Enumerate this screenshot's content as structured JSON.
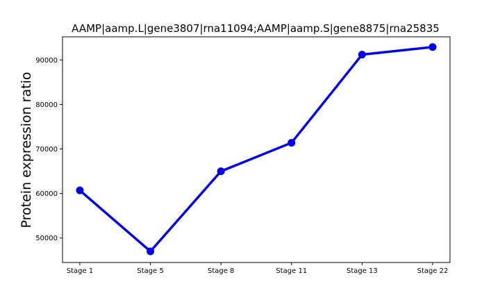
{
  "chart_data": {
    "type": "line",
    "title": "AAMP|aamp.L|gene3807|rna11094;AAMP|aamp.S|gene8875|rna25835",
    "xlabel": "",
    "ylabel": "Protein expression ratio",
    "categories": [
      "Stage 1",
      "Stage 5",
      "Stage 8",
      "Stage 11",
      "Stage 13",
      "Stage 22"
    ],
    "series": [
      {
        "values": [
          60700,
          47000,
          65000,
          71400,
          91200,
          92900
        ],
        "color": "#0000ee"
      }
    ],
    "yticks": [
      50000,
      60000,
      70000,
      80000,
      90000
    ],
    "ylim": [
      44500,
      95200
    ],
    "grid": false,
    "legend": "none"
  }
}
